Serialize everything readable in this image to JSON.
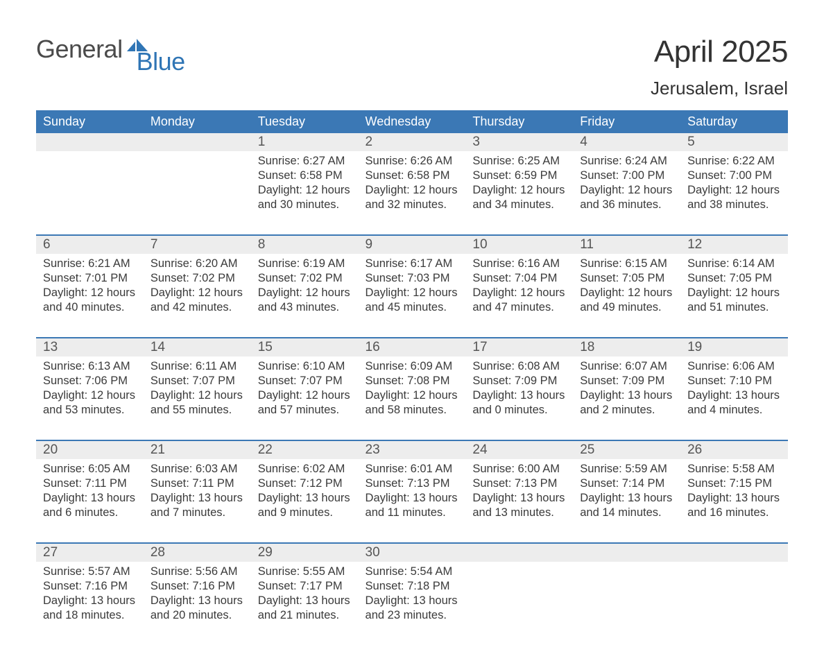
{
  "brand": {
    "general": "General",
    "blue": "Blue"
  },
  "colors": {
    "header_bg": "#3b78b5",
    "header_text": "#ffffff",
    "daynum_bg": "#ededed",
    "divider": "#3b78b5",
    "body_text": "#3a3a3a",
    "logo_gray": "#4a4a4a",
    "logo_blue": "#2f75b5",
    "page_bg": "#ffffff"
  },
  "title": "April 2025",
  "location": "Jerusalem, Israel",
  "weekdays": [
    "Sunday",
    "Monday",
    "Tuesday",
    "Wednesday",
    "Thursday",
    "Friday",
    "Saturday"
  ],
  "layout": {
    "type": "calendar-table",
    "columns": 7,
    "rows": 5,
    "first_weekday_index": 2,
    "fonts": {
      "title_pt": 44,
      "location_pt": 26,
      "weekday_pt": 18,
      "daynum_pt": 19,
      "body_pt": 16.5
    }
  },
  "weeks": [
    [
      null,
      null,
      {
        "n": "1",
        "sunrise": "Sunrise: 6:27 AM",
        "sunset": "Sunset: 6:58 PM",
        "day1": "Daylight: 12 hours",
        "day2": "and 30 minutes."
      },
      {
        "n": "2",
        "sunrise": "Sunrise: 6:26 AM",
        "sunset": "Sunset: 6:58 PM",
        "day1": "Daylight: 12 hours",
        "day2": "and 32 minutes."
      },
      {
        "n": "3",
        "sunrise": "Sunrise: 6:25 AM",
        "sunset": "Sunset: 6:59 PM",
        "day1": "Daylight: 12 hours",
        "day2": "and 34 minutes."
      },
      {
        "n": "4",
        "sunrise": "Sunrise: 6:24 AM",
        "sunset": "Sunset: 7:00 PM",
        "day1": "Daylight: 12 hours",
        "day2": "and 36 minutes."
      },
      {
        "n": "5",
        "sunrise": "Sunrise: 6:22 AM",
        "sunset": "Sunset: 7:00 PM",
        "day1": "Daylight: 12 hours",
        "day2": "and 38 minutes."
      }
    ],
    [
      {
        "n": "6",
        "sunrise": "Sunrise: 6:21 AM",
        "sunset": "Sunset: 7:01 PM",
        "day1": "Daylight: 12 hours",
        "day2": "and 40 minutes."
      },
      {
        "n": "7",
        "sunrise": "Sunrise: 6:20 AM",
        "sunset": "Sunset: 7:02 PM",
        "day1": "Daylight: 12 hours",
        "day2": "and 42 minutes."
      },
      {
        "n": "8",
        "sunrise": "Sunrise: 6:19 AM",
        "sunset": "Sunset: 7:02 PM",
        "day1": "Daylight: 12 hours",
        "day2": "and 43 minutes."
      },
      {
        "n": "9",
        "sunrise": "Sunrise: 6:17 AM",
        "sunset": "Sunset: 7:03 PM",
        "day1": "Daylight: 12 hours",
        "day2": "and 45 minutes."
      },
      {
        "n": "10",
        "sunrise": "Sunrise: 6:16 AM",
        "sunset": "Sunset: 7:04 PM",
        "day1": "Daylight: 12 hours",
        "day2": "and 47 minutes."
      },
      {
        "n": "11",
        "sunrise": "Sunrise: 6:15 AM",
        "sunset": "Sunset: 7:05 PM",
        "day1": "Daylight: 12 hours",
        "day2": "and 49 minutes."
      },
      {
        "n": "12",
        "sunrise": "Sunrise: 6:14 AM",
        "sunset": "Sunset: 7:05 PM",
        "day1": "Daylight: 12 hours",
        "day2": "and 51 minutes."
      }
    ],
    [
      {
        "n": "13",
        "sunrise": "Sunrise: 6:13 AM",
        "sunset": "Sunset: 7:06 PM",
        "day1": "Daylight: 12 hours",
        "day2": "and 53 minutes."
      },
      {
        "n": "14",
        "sunrise": "Sunrise: 6:11 AM",
        "sunset": "Sunset: 7:07 PM",
        "day1": "Daylight: 12 hours",
        "day2": "and 55 minutes."
      },
      {
        "n": "15",
        "sunrise": "Sunrise: 6:10 AM",
        "sunset": "Sunset: 7:07 PM",
        "day1": "Daylight: 12 hours",
        "day2": "and 57 minutes."
      },
      {
        "n": "16",
        "sunrise": "Sunrise: 6:09 AM",
        "sunset": "Sunset: 7:08 PM",
        "day1": "Daylight: 12 hours",
        "day2": "and 58 minutes."
      },
      {
        "n": "17",
        "sunrise": "Sunrise: 6:08 AM",
        "sunset": "Sunset: 7:09 PM",
        "day1": "Daylight: 13 hours",
        "day2": "and 0 minutes."
      },
      {
        "n": "18",
        "sunrise": "Sunrise: 6:07 AM",
        "sunset": "Sunset: 7:09 PM",
        "day1": "Daylight: 13 hours",
        "day2": "and 2 minutes."
      },
      {
        "n": "19",
        "sunrise": "Sunrise: 6:06 AM",
        "sunset": "Sunset: 7:10 PM",
        "day1": "Daylight: 13 hours",
        "day2": "and 4 minutes."
      }
    ],
    [
      {
        "n": "20",
        "sunrise": "Sunrise: 6:05 AM",
        "sunset": "Sunset: 7:11 PM",
        "day1": "Daylight: 13 hours",
        "day2": "and 6 minutes."
      },
      {
        "n": "21",
        "sunrise": "Sunrise: 6:03 AM",
        "sunset": "Sunset: 7:11 PM",
        "day1": "Daylight: 13 hours",
        "day2": "and 7 minutes."
      },
      {
        "n": "22",
        "sunrise": "Sunrise: 6:02 AM",
        "sunset": "Sunset: 7:12 PM",
        "day1": "Daylight: 13 hours",
        "day2": "and 9 minutes."
      },
      {
        "n": "23",
        "sunrise": "Sunrise: 6:01 AM",
        "sunset": "Sunset: 7:13 PM",
        "day1": "Daylight: 13 hours",
        "day2": "and 11 minutes."
      },
      {
        "n": "24",
        "sunrise": "Sunrise: 6:00 AM",
        "sunset": "Sunset: 7:13 PM",
        "day1": "Daylight: 13 hours",
        "day2": "and 13 minutes."
      },
      {
        "n": "25",
        "sunrise": "Sunrise: 5:59 AM",
        "sunset": "Sunset: 7:14 PM",
        "day1": "Daylight: 13 hours",
        "day2": "and 14 minutes."
      },
      {
        "n": "26",
        "sunrise": "Sunrise: 5:58 AM",
        "sunset": "Sunset: 7:15 PM",
        "day1": "Daylight: 13 hours",
        "day2": "and 16 minutes."
      }
    ],
    [
      {
        "n": "27",
        "sunrise": "Sunrise: 5:57 AM",
        "sunset": "Sunset: 7:16 PM",
        "day1": "Daylight: 13 hours",
        "day2": "and 18 minutes."
      },
      {
        "n": "28",
        "sunrise": "Sunrise: 5:56 AM",
        "sunset": "Sunset: 7:16 PM",
        "day1": "Daylight: 13 hours",
        "day2": "and 20 minutes."
      },
      {
        "n": "29",
        "sunrise": "Sunrise: 5:55 AM",
        "sunset": "Sunset: 7:17 PM",
        "day1": "Daylight: 13 hours",
        "day2": "and 21 minutes."
      },
      {
        "n": "30",
        "sunrise": "Sunrise: 5:54 AM",
        "sunset": "Sunset: 7:18 PM",
        "day1": "Daylight: 13 hours",
        "day2": "and 23 minutes."
      },
      null,
      null,
      null
    ]
  ]
}
